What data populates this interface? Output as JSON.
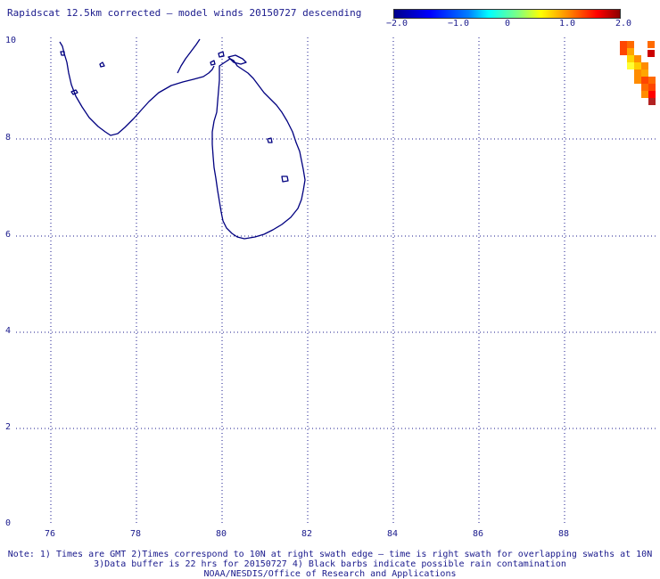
{
  "title": "Rapidscat 12.5km corrected – model winds 20150727 descending",
  "colorbar": {
    "ticks": [
      "−2.0",
      "−1.0",
      "0",
      "1.0",
      "2.0"
    ],
    "colors": [
      "#00008b",
      "#0000ff",
      "#00ffff",
      "#ffff00",
      "#ff0000",
      "#8b0000"
    ]
  },
  "map": {
    "lat_labels": [
      "10",
      "8",
      "6",
      "4",
      "2",
      "0"
    ],
    "lon_labels": [
      "76",
      "78",
      "80",
      "82",
      "84",
      "86",
      "88"
    ],
    "coastline_color": "#000080",
    "grid": "dotted"
  },
  "swath_colors": [
    "#ff4500",
    "#ffa500",
    "#ffff00",
    "#ff0000",
    "#b22222"
  ],
  "notes": {
    "line1": "Note: 1) Times are GMT 2)Times correspond to 10N at right swath edge – time is right swath for overlapping swaths at 10N",
    "line2": "3)Data buffer is 22 hrs for 20150727 4) Black barbs indicate possible rain contamination",
    "line3": "NOAA/NESDIS/Office of Research and Applications"
  }
}
